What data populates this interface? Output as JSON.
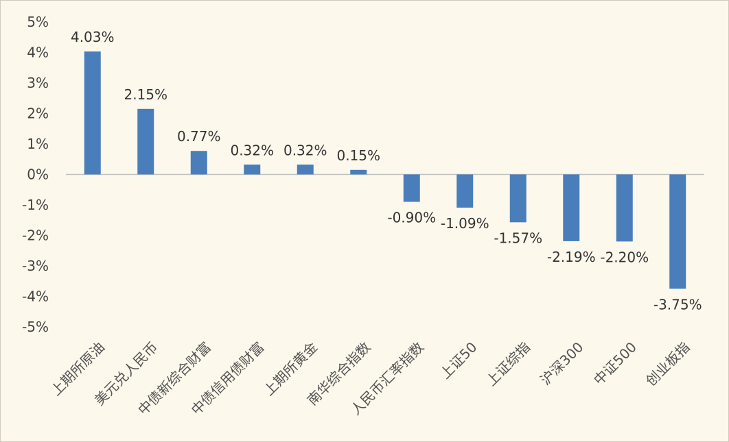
{
  "chart_data": {
    "type": "bar",
    "categories": [
      "上期所原油",
      "美元兑人民币",
      "中债新综合财富",
      "中债信用债财富",
      "上期所黄金",
      "南华综合指数",
      "人民币汇率指数",
      "上证50",
      "上证综指",
      "沪深300",
      "中证500",
      "创业板指"
    ],
    "values": [
      4.03,
      2.15,
      0.77,
      0.32,
      0.32,
      0.15,
      -0.9,
      -1.09,
      -1.57,
      -2.19,
      -2.2,
      -3.75
    ],
    "data_labels": [
      "4.03%",
      "2.15%",
      "0.77%",
      "0.32%",
      "0.32%",
      "0.15%",
      "-0.90%",
      "-1.09%",
      "-1.57%",
      "-2.19%",
      "-2.20%",
      "-3.75%"
    ],
    "y_ticks": [
      5,
      4,
      3,
      2,
      1,
      0,
      -1,
      -2,
      -3,
      -4,
      -5
    ],
    "y_tick_labels": [
      "5%",
      "4%",
      "3%",
      "2%",
      "1%",
      "0%",
      "-1%",
      "-2%",
      "-3%",
      "-4%",
      "-5%"
    ],
    "ylim": [
      -5,
      5
    ],
    "title": "",
    "xlabel": "",
    "ylabel": "",
    "grid": false,
    "legend": "none",
    "bar_color": "#4a7ebb"
  }
}
